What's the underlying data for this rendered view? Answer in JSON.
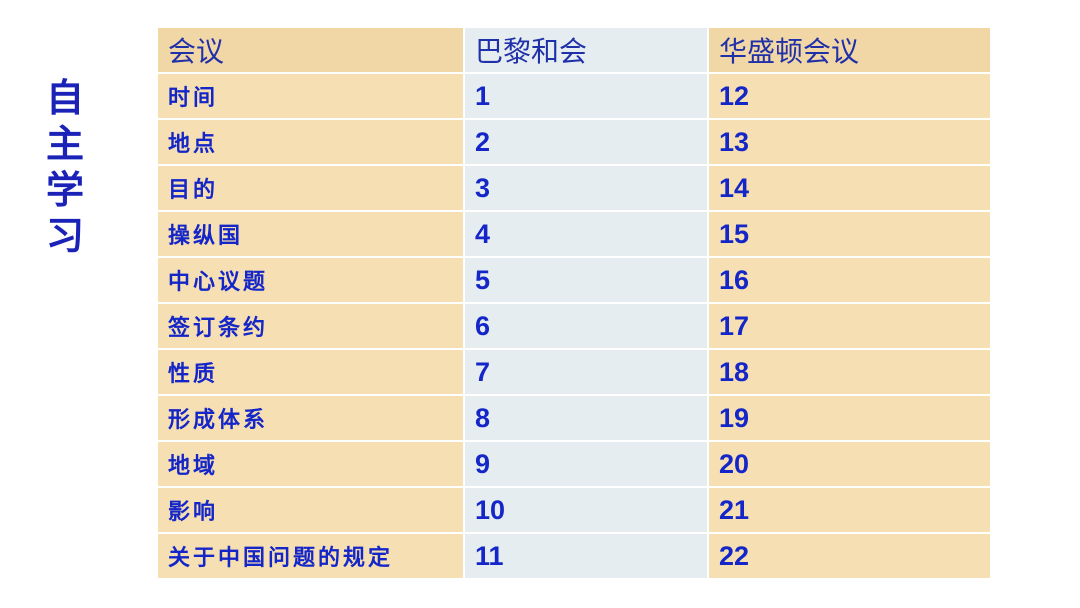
{
  "side_title": [
    "自",
    "主",
    "学",
    "习"
  ],
  "table": {
    "headers": [
      "会议",
      "巴黎和会",
      "华盛顿会议"
    ],
    "rows": [
      [
        "时间",
        "1",
        "12"
      ],
      [
        "地点",
        "2",
        "13"
      ],
      [
        "目的",
        "3",
        "14"
      ],
      [
        "操纵国",
        "4",
        "15"
      ],
      [
        "中心议题",
        "5",
        "16"
      ],
      [
        "签订条约",
        "6",
        "17"
      ],
      [
        "性质",
        "7",
        "18"
      ],
      [
        "形成体系",
        "8",
        "19"
      ],
      [
        "地域",
        "9",
        "20"
      ],
      [
        "影响",
        "10",
        "21"
      ],
      [
        "关于中国问题的规定",
        "11",
        "22"
      ]
    ]
  },
  "colors": {
    "text": "#1426c8",
    "tan": "#f6dfb2",
    "blue_gray": "#e5edf1"
  }
}
